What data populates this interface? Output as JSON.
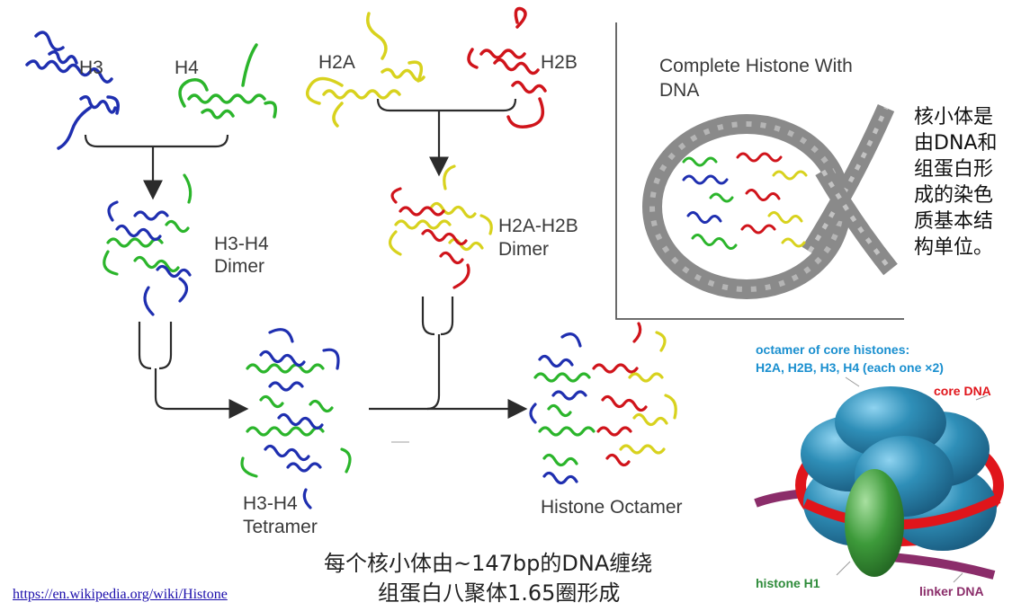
{
  "labels": {
    "h3": "H3",
    "h4": "H4",
    "h2a": "H2A",
    "h2b": "H2B",
    "h3h4_dimer": [
      "H3-H4",
      "Dimer"
    ],
    "h2ah2b_dimer": [
      "H2A-H2B",
      "Dimer"
    ],
    "h3h4_tetramer": [
      "H3-H4",
      "Tetramer"
    ],
    "octamer": "Histone Octamer",
    "complete": [
      "Complete Histone With",
      "DNA"
    ]
  },
  "chinese_note": [
    "核小体是",
    "由DNA和",
    "组蛋白形",
    "成的染色",
    "质基本结",
    "构单位。"
  ],
  "caption": [
    "每个核小体由~147bp的DNA缠绕",
    "组蛋白八聚体1.65圈形成"
  ],
  "link": "https://en.wikipedia.org/wiki/Histone",
  "model_labels": {
    "octamer_line1": "octamer of core histones:",
    "octamer_line2": "H2A, H2B, H3, H4 (each one ×2)",
    "core_dna": "core DNA",
    "histone_h1": "histone H1",
    "linker_dna": "linker DNA"
  },
  "colors": {
    "h3": "#1f2fb0",
    "h4": "#2bb52b",
    "h2a": "#d8d21e",
    "h2b": "#d0141b",
    "dna": "#7a7a7a",
    "octamer_sphere": "#2f8fb8",
    "core_dna": "#e0151b",
    "linker_dna": "#8b2d6a",
    "histone_h1": "#3d9a3a"
  }
}
